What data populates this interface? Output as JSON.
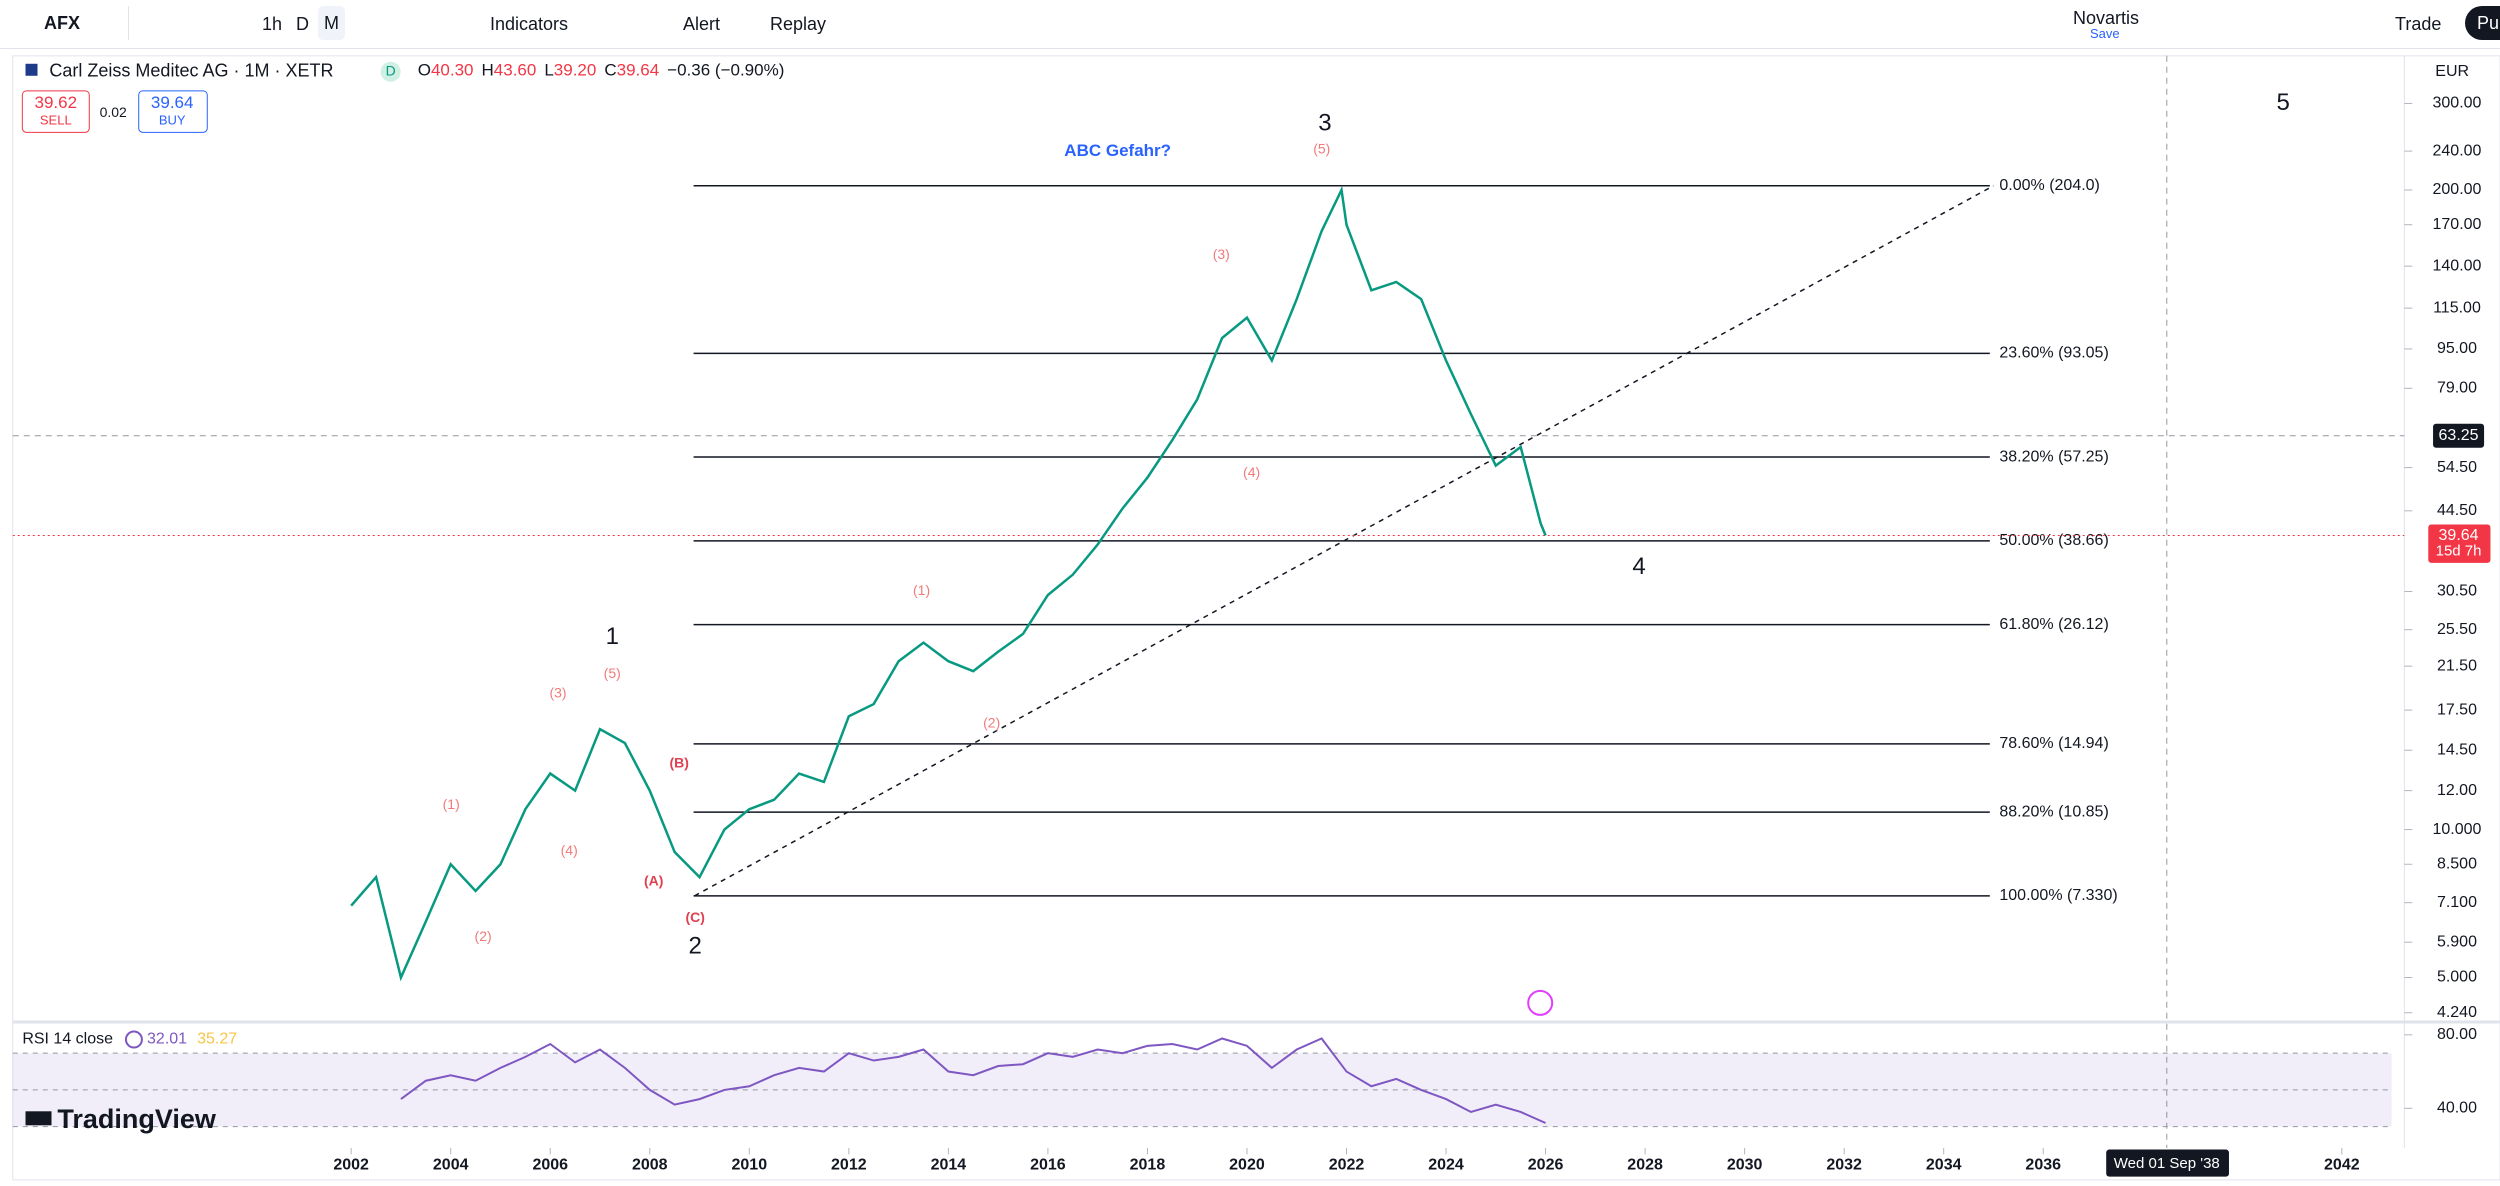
{
  "toolbar": {
    "symbol": "AFX",
    "intervals": [
      "1h",
      "D",
      "M"
    ],
    "indicators": "Indicators",
    "alert": "Alert",
    "replay": "Replay",
    "layout": "Novartis",
    "save": "Save",
    "trade": "Trade",
    "publish": "Pu"
  },
  "legend": {
    "name": "Carl Zeiss Meditec AG · 1M · XETR",
    "badge": "D",
    "ohlc": [
      "O",
      "40.30",
      "H",
      "43.60",
      "L",
      "39.20",
      "C",
      "39.64",
      "−0.36 (−0.90%)"
    ],
    "sell_price": "39.62",
    "sell": "SELL",
    "spread": "0.02",
    "buy_price": "39.64",
    "buy": "BUY"
  },
  "brand": "TradingView",
  "chart_data": {
    "type": "line",
    "currency": "EUR",
    "log_scale": true,
    "color": "#089981",
    "xlim": [
      1995.2,
      2043.0
    ],
    "xticks": [
      2002,
      2004,
      2006,
      2008,
      2010,
      2012,
      2014,
      2016,
      2018,
      2020,
      2022,
      2024,
      2026,
      2028,
      2030,
      2032,
      2034,
      2036,
      2042
    ],
    "ylim": [
      3.94,
      375
    ],
    "yticks": [
      {
        "value": 300,
        "label": "300.00"
      },
      {
        "value": 240,
        "label": "240.00"
      },
      {
        "value": 200,
        "label": "200.00"
      },
      {
        "value": 170,
        "label": "170.00"
      },
      {
        "value": 140,
        "label": "140.00"
      },
      {
        "value": 115,
        "label": "115.00"
      },
      {
        "value": 95,
        "label": "95.00"
      },
      {
        "value": 79,
        "label": "79.00"
      },
      {
        "value": 54.5,
        "label": "54.50"
      },
      {
        "value": 44.5,
        "label": "44.50"
      },
      {
        "value": 30.5,
        "label": "30.50"
      },
      {
        "value": 25.5,
        "label": "25.50"
      },
      {
        "value": 21.5,
        "label": "21.50"
      },
      {
        "value": 17.5,
        "label": "17.50"
      },
      {
        "value": 14.5,
        "label": "14.50"
      },
      {
        "value": 12,
        "label": "12.00"
      },
      {
        "value": 10,
        "label": "10.000"
      },
      {
        "value": 8.5,
        "label": "8.500"
      },
      {
        "value": 7.1,
        "label": "7.100"
      },
      {
        "value": 5.9,
        "label": "5.900"
      },
      {
        "value": 5,
        "label": "5.000"
      },
      {
        "value": 4.24,
        "label": "4.240"
      }
    ],
    "x": [
      2002.0,
      2002.5,
      2003.0,
      2003.5,
      2004.0,
      2004.5,
      2005.0,
      2005.5,
      2006.0,
      2006.5,
      2007.0,
      2007.5,
      2008.0,
      2008.5,
      2009.0,
      2009.5,
      2010.0,
      2010.5,
      2011.0,
      2011.5,
      2012.0,
      2012.5,
      2013.0,
      2013.5,
      2014.0,
      2014.5,
      2015.0,
      2015.5,
      2016.0,
      2016.5,
      2017.0,
      2017.5,
      2018.0,
      2018.5,
      2019.0,
      2019.5,
      2020.0,
      2020.5,
      2021.0,
      2021.5,
      2021.9,
      2022.0,
      2022.5,
      2023.0,
      2023.5,
      2024.0,
      2024.5,
      2025.0,
      2025.5,
      2025.9,
      2026.0
    ],
    "values": [
      7.0,
      8.0,
      5.0,
      6.5,
      8.5,
      7.5,
      8.5,
      11,
      13,
      12,
      16,
      15,
      12,
      9,
      8,
      10,
      11,
      11.5,
      13,
      12.5,
      17,
      18,
      22,
      24,
      22,
      21,
      23,
      25,
      30,
      33,
      38,
      45,
      52,
      62,
      75,
      100,
      110,
      90,
      120,
      165,
      200,
      170,
      125,
      130,
      120,
      90,
      70,
      55,
      60,
      42,
      39.64
    ],
    "fib_levels": [
      {
        "value": 204,
        "label": "0.00% (204.0)"
      },
      {
        "value": 93.05,
        "label": "23.60% (93.05)"
      },
      {
        "value": 57.25,
        "label": "38.20% (57.25)"
      },
      {
        "value": 38.66,
        "label": "50.00% (38.66)"
      },
      {
        "value": 26.12,
        "label": "61.80% (26.12)"
      },
      {
        "value": 14.94,
        "label": "78.60% (14.94)"
      },
      {
        "value": 10.85,
        "label": "88.20% (10.85)"
      },
      {
        "value": 7.33,
        "label": "100.00% (7.330)"
      }
    ],
    "trendline": {
      "x": [
        2008.9,
        2035.0
      ],
      "y": [
        7.33,
        204
      ]
    },
    "annotations": [
      "ABC Gefahr?",
      "3",
      "(5)",
      "(3)",
      "(4)",
      "(1)",
      "(2)",
      "1",
      "(5)",
      "(3)",
      "(1)",
      "(4)",
      "(2)",
      "(B)",
      "(A)",
      "(C)",
      "2",
      "4",
      "5"
    ],
    "crosshair_price": 63.25,
    "last_price": 39.64,
    "countdown": "15d 7h",
    "crosshair_date": "Wed 01 Sep '38",
    "rsi": {
      "title": "RSI 14 close",
      "value": "32.01",
      "ma": "35.27",
      "color": "#7e57c2",
      "ylim": [
        21,
        83.5
      ],
      "yticks": [
        {
          "value": 80,
          "label": "80.00"
        },
        {
          "value": 40,
          "label": "40.00"
        }
      ],
      "x": [
        2003.0,
        2003.5,
        2004.0,
        2004.5,
        2005.0,
        2005.5,
        2006.0,
        2006.5,
        2007.0,
        2007.5,
        2008.0,
        2008.5,
        2009.0,
        2009.5,
        2010.0,
        2010.5,
        2011.0,
        2011.5,
        2012.0,
        2012.5,
        2013.0,
        2013.5,
        2014.0,
        2014.5,
        2015.0,
        2015.5,
        2016.0,
        2016.5,
        2017.0,
        2017.5,
        2018.0,
        2018.5,
        2019.0,
        2019.5,
        2020.0,
        2020.5,
        2021.0,
        2021.5,
        2022.0,
        2022.5,
        2023.0,
        2023.5,
        2024.0,
        2024.5,
        2025.0,
        2025.5,
        2026.0
      ],
      "values": [
        45,
        55,
        58,
        55,
        62,
        68,
        75,
        65,
        72,
        62,
        50,
        42,
        45,
        50,
        52,
        58,
        62,
        60,
        70,
        66,
        68,
        72,
        60,
        58,
        63,
        64,
        70,
        68,
        72,
        70,
        74,
        75,
        72,
        78,
        74,
        62,
        72,
        78,
        60,
        52,
        56,
        50,
        45,
        38,
        42,
        38,
        32
      ]
    }
  }
}
